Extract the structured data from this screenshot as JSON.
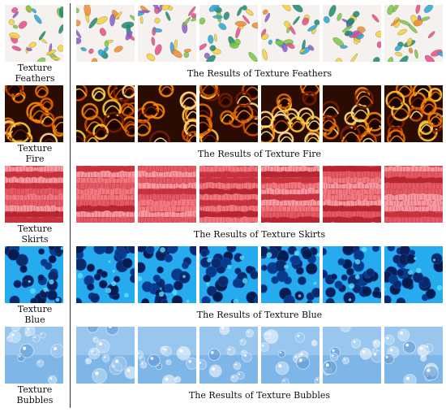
{
  "rows": [
    {
      "id": "feathers",
      "label": "Texture\nFeathers",
      "caption": "The Results of Texture Feathers",
      "bg": "#f4f1ee",
      "colors": [
        "#e94c8a",
        "#2aa7d8",
        "#7ac943",
        "#f7d23a",
        "#8c5bd1",
        "#f28b2e",
        "#1f8a70"
      ]
    },
    {
      "id": "fire",
      "label": "Texture\nFire",
      "caption": "The Results of Texture Fire",
      "bg": "#2a0c03",
      "colors": [
        "#ff8a00",
        "#ffcc33",
        "#d14b00",
        "#7a1c00",
        "#ffe08a",
        "#e56a00"
      ]
    },
    {
      "id": "skirts",
      "label": "Texture\nSkirts",
      "caption": "The Results of Texture Skirts",
      "bg": "#d94a55",
      "colors": [
        "#f37d86",
        "#c7313e",
        "#f7a1a8",
        "#e35b66",
        "#b3232f"
      ]
    },
    {
      "id": "blue",
      "label": "Texture\nBlue",
      "caption": "The Results of Texture Blue",
      "bg": "#34c6ff",
      "colors": [
        "#051c4d",
        "#0a2a6b",
        "#073a8a",
        "#0b1f58",
        "#5ee0ff"
      ]
    },
    {
      "id": "bubbles",
      "label": "Texture\nBubbles",
      "caption": "The Results of Texture Bubbles",
      "bg": "#7fb6e8",
      "colors": [
        "#d9ecfb",
        "#a8cdf0",
        "#ffffff",
        "#5f98d4",
        "#c4e1f7"
      ]
    }
  ]
}
